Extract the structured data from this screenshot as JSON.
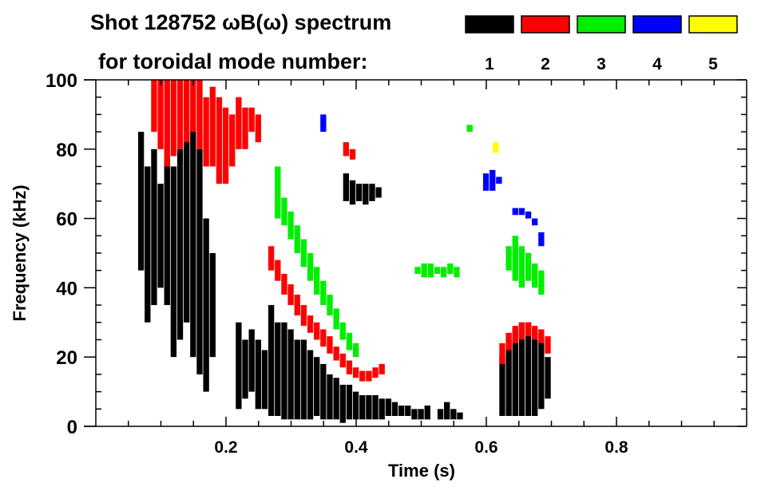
{
  "chart_data": {
    "type": "heatmap",
    "title_line1": "Shot 128752 ωB(ω) spectrum",
    "title_line2": "for toroidal mode number:",
    "xlabel": "Time (s)",
    "ylabel": "Frequency (kHz)",
    "xlim": [
      0,
      1.0
    ],
    "ylim": [
      0,
      100
    ],
    "xticks": [
      "0.2",
      "0.4",
      "0.6",
      "0.8"
    ],
    "xtick_values": [
      0.2,
      0.4,
      0.6,
      0.8
    ],
    "yticks": [
      "0",
      "20",
      "40",
      "60",
      "80",
      "100"
    ],
    "ytick_values": [
      0,
      20,
      40,
      60,
      80,
      100
    ],
    "column_width_s": 0.01,
    "legend": [
      {
        "label": "1",
        "color": "#000000"
      },
      {
        "label": "2",
        "color": "#ff0000"
      },
      {
        "label": "3",
        "color": "#00ee00"
      },
      {
        "label": "4",
        "color": "#0000ff"
      },
      {
        "label": "5",
        "color": "#ffff00"
      }
    ],
    "series": [
      {
        "name": "n=1",
        "color": "#000000",
        "columns": [
          [
            0.07,
            45,
            85
          ],
          [
            0.08,
            30,
            75
          ],
          [
            0.09,
            35,
            80
          ],
          [
            0.1,
            40,
            70
          ],
          [
            0.11,
            35,
            78
          ],
          [
            0.12,
            20,
            75
          ],
          [
            0.13,
            25,
            80
          ],
          [
            0.14,
            30,
            85
          ],
          [
            0.15,
            20,
            88
          ],
          [
            0.16,
            15,
            80
          ],
          [
            0.17,
            10,
            60
          ],
          [
            0.18,
            20,
            50
          ],
          [
            0.22,
            5,
            30
          ],
          [
            0.23,
            8,
            25
          ],
          [
            0.24,
            10,
            28
          ],
          [
            0.25,
            5,
            25
          ],
          [
            0.26,
            5,
            22
          ],
          [
            0.27,
            3,
            35
          ],
          [
            0.28,
            3,
            30
          ],
          [
            0.29,
            2,
            30
          ],
          [
            0.3,
            2,
            28
          ],
          [
            0.31,
            2,
            25
          ],
          [
            0.32,
            2,
            25
          ],
          [
            0.33,
            2,
            22
          ],
          [
            0.34,
            3,
            20
          ],
          [
            0.35,
            2,
            18
          ],
          [
            0.36,
            2,
            15
          ],
          [
            0.37,
            2,
            14
          ],
          [
            0.38,
            1,
            12
          ],
          [
            0.39,
            2,
            12
          ],
          [
            0.4,
            2,
            10
          ],
          [
            0.41,
            2,
            9
          ],
          [
            0.42,
            2,
            9
          ],
          [
            0.43,
            2,
            9
          ],
          [
            0.44,
            2,
            8
          ],
          [
            0.45,
            3,
            8
          ],
          [
            0.46,
            3,
            7
          ],
          [
            0.47,
            3,
            6
          ],
          [
            0.48,
            3,
            6
          ],
          [
            0.49,
            2,
            5
          ],
          [
            0.5,
            2,
            5
          ],
          [
            0.51,
            2,
            6
          ],
          [
            0.53,
            2,
            5
          ],
          [
            0.54,
            2,
            7
          ],
          [
            0.55,
            2,
            5
          ],
          [
            0.56,
            2,
            4
          ],
          [
            0.385,
            65,
            73
          ],
          [
            0.395,
            64,
            71
          ],
          [
            0.405,
            65,
            70
          ],
          [
            0.415,
            64,
            70
          ],
          [
            0.425,
            65,
            70
          ],
          [
            0.435,
            66,
            69
          ],
          [
            0.625,
            3,
            20
          ],
          [
            0.635,
            3,
            25
          ],
          [
            0.645,
            3,
            28
          ],
          [
            0.655,
            3,
            30
          ],
          [
            0.665,
            3,
            30
          ],
          [
            0.675,
            3,
            28
          ],
          [
            0.685,
            5,
            25
          ],
          [
            0.695,
            8,
            20
          ]
        ]
      },
      {
        "name": "n=2",
        "color": "#ff0000",
        "columns": [
          [
            0.09,
            85,
            100
          ],
          [
            0.1,
            80,
            100
          ],
          [
            0.11,
            75,
            100
          ],
          [
            0.12,
            78,
            100
          ],
          [
            0.13,
            80,
            100
          ],
          [
            0.14,
            82,
            100
          ],
          [
            0.15,
            85,
            100
          ],
          [
            0.16,
            80,
            100
          ],
          [
            0.17,
            75,
            95
          ],
          [
            0.18,
            75,
            98
          ],
          [
            0.19,
            70,
            95
          ],
          [
            0.2,
            70,
            92
          ],
          [
            0.21,
            75,
            90
          ],
          [
            0.22,
            80,
            95
          ],
          [
            0.23,
            80,
            92
          ],
          [
            0.24,
            85,
            92
          ],
          [
            0.25,
            82,
            90
          ],
          [
            0.27,
            45,
            52
          ],
          [
            0.28,
            42,
            48
          ],
          [
            0.29,
            38,
            44
          ],
          [
            0.3,
            35,
            41
          ],
          [
            0.31,
            32,
            38
          ],
          [
            0.32,
            29,
            35
          ],
          [
            0.33,
            27,
            32
          ],
          [
            0.34,
            25,
            30
          ],
          [
            0.35,
            23,
            28
          ],
          [
            0.36,
            21,
            26
          ],
          [
            0.37,
            19,
            23
          ],
          [
            0.38,
            17,
            21
          ],
          [
            0.39,
            15,
            19
          ],
          [
            0.4,
            14,
            17
          ],
          [
            0.41,
            13,
            16
          ],
          [
            0.42,
            13,
            16
          ],
          [
            0.43,
            14,
            17
          ],
          [
            0.44,
            15,
            18
          ],
          [
            0.385,
            78,
            82
          ],
          [
            0.395,
            77,
            80
          ],
          [
            0.625,
            18,
            24
          ],
          [
            0.635,
            22,
            27
          ],
          [
            0.645,
            24,
            29
          ],
          [
            0.655,
            25,
            30
          ],
          [
            0.665,
            26,
            30
          ],
          [
            0.675,
            25,
            29
          ],
          [
            0.685,
            24,
            28
          ],
          [
            0.695,
            21,
            26
          ]
        ]
      },
      {
        "name": "n=3",
        "color": "#00ee00",
        "columns": [
          [
            0.28,
            60,
            75
          ],
          [
            0.29,
            58,
            66
          ],
          [
            0.3,
            54,
            62
          ],
          [
            0.31,
            50,
            58
          ],
          [
            0.32,
            46,
            54
          ],
          [
            0.33,
            42,
            50
          ],
          [
            0.34,
            38,
            46
          ],
          [
            0.35,
            35,
            42
          ],
          [
            0.36,
            32,
            38
          ],
          [
            0.37,
            28,
            34
          ],
          [
            0.38,
            25,
            30
          ],
          [
            0.39,
            22,
            27
          ],
          [
            0.4,
            20,
            24
          ],
          [
            0.495,
            44,
            46
          ],
          [
            0.505,
            43,
            47
          ],
          [
            0.515,
            43,
            47
          ],
          [
            0.525,
            44,
            46
          ],
          [
            0.535,
            43,
            46
          ],
          [
            0.545,
            44,
            47
          ],
          [
            0.555,
            43,
            46
          ],
          [
            0.635,
            45,
            52
          ],
          [
            0.645,
            42,
            55
          ],
          [
            0.655,
            40,
            52
          ],
          [
            0.665,
            42,
            50
          ],
          [
            0.675,
            40,
            47
          ],
          [
            0.685,
            38,
            45
          ],
          [
            0.575,
            85,
            87
          ]
        ]
      },
      {
        "name": "n=4",
        "color": "#0000ff",
        "columns": [
          [
            0.35,
            85,
            90
          ],
          [
            0.6,
            68,
            73
          ],
          [
            0.61,
            68,
            74
          ],
          [
            0.62,
            70,
            72
          ],
          [
            0.645,
            61,
            63
          ],
          [
            0.655,
            61,
            63
          ],
          [
            0.665,
            60,
            62
          ],
          [
            0.675,
            58,
            60
          ],
          [
            0.685,
            52,
            56
          ]
        ]
      },
      {
        "name": "n=5",
        "color": "#ffff00",
        "columns": [
          [
            0.615,
            79,
            82
          ]
        ]
      }
    ]
  }
}
